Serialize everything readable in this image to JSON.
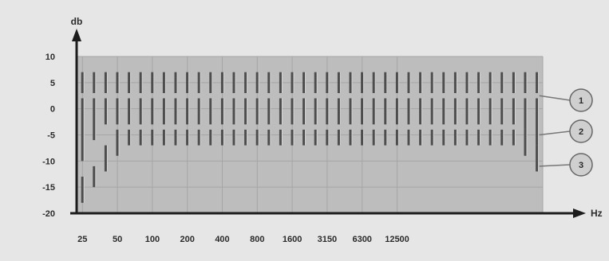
{
  "chart_data": {
    "type": "range-bar",
    "title": "",
    "xlabel": "Hz",
    "ylabel": "db",
    "ylim": [
      -20,
      10
    ],
    "yticks": [
      10,
      5,
      0,
      -5,
      -10,
      -15,
      -20
    ],
    "xtick_labels": [
      "25",
      "50",
      "100",
      "200",
      "400",
      "800",
      "1600",
      "3150",
      "6300",
      "12500"
    ],
    "band_count": 40,
    "x_tick_positions": [
      0.5,
      3.5,
      6.5,
      9.5,
      12.5,
      15.5,
      18.5,
      21.5,
      24.5,
      27.5
    ],
    "grid": true,
    "callouts": [
      "1",
      "2",
      "3"
    ],
    "series": [
      {
        "callout": "1",
        "segments": [
          [
            3,
            7
          ],
          [
            3,
            7
          ],
          [
            3,
            7
          ],
          [
            3,
            7
          ],
          [
            3,
            7
          ],
          [
            3,
            7
          ],
          [
            3,
            7
          ],
          [
            3,
            7
          ],
          [
            3,
            7
          ],
          [
            3,
            7
          ],
          [
            3,
            7
          ],
          [
            3,
            7
          ],
          [
            3,
            7
          ],
          [
            3,
            7
          ],
          [
            3,
            7
          ],
          [
            3,
            7
          ],
          [
            3,
            7
          ],
          [
            3,
            7
          ],
          [
            3,
            7
          ],
          [
            3,
            7
          ],
          [
            3,
            7
          ],
          [
            3,
            7
          ],
          [
            3,
            7
          ],
          [
            3,
            7
          ],
          [
            3,
            7
          ],
          [
            3,
            7
          ],
          [
            3,
            7
          ],
          [
            3,
            7
          ],
          [
            3,
            7
          ],
          [
            3,
            7
          ],
          [
            3,
            7
          ],
          [
            3,
            7
          ],
          [
            3,
            7
          ],
          [
            3,
            7
          ],
          [
            3,
            7
          ],
          [
            3,
            7
          ],
          [
            3,
            7
          ],
          [
            3,
            7
          ],
          [
            3,
            7
          ],
          [
            3,
            7
          ]
        ]
      },
      {
        "callout": "2",
        "segments": [
          [
            -10,
            2
          ],
          [
            -6,
            2
          ],
          [
            -3,
            2
          ],
          [
            -3,
            2
          ],
          [
            -3,
            2
          ],
          [
            -3,
            2
          ],
          [
            -3,
            2
          ],
          [
            -3,
            2
          ],
          [
            -3,
            2
          ],
          [
            -3,
            2
          ],
          [
            -3,
            2
          ],
          [
            -3,
            2
          ],
          [
            -3,
            2
          ],
          [
            -3,
            2
          ],
          [
            -3,
            2
          ],
          [
            -3,
            2
          ],
          [
            -3,
            2
          ],
          [
            -3,
            2
          ],
          [
            -3,
            2
          ],
          [
            -3,
            2
          ],
          [
            -3,
            2
          ],
          [
            -3,
            2
          ],
          [
            -3,
            2
          ],
          [
            -3,
            2
          ],
          [
            -3,
            2
          ],
          [
            -3,
            2
          ],
          [
            -3,
            2
          ],
          [
            -3,
            2
          ],
          [
            -3,
            2
          ],
          [
            -3,
            2
          ],
          [
            -3,
            2
          ],
          [
            -3,
            2
          ],
          [
            -3,
            2
          ],
          [
            -3,
            2
          ],
          [
            -3,
            2
          ],
          [
            -3,
            2
          ],
          [
            -3,
            2
          ],
          [
            -3,
            2
          ],
          [
            -4,
            2
          ],
          [
            -7,
            2
          ]
        ]
      },
      {
        "callout": "3",
        "segments": [
          [
            -18,
            -13
          ],
          [
            -15,
            -11
          ],
          [
            -12,
            -7
          ],
          [
            -9,
            -4
          ],
          [
            -7,
            -4
          ],
          [
            -7,
            -4
          ],
          [
            -7,
            -4
          ],
          [
            -7,
            -4
          ],
          [
            -7,
            -4
          ],
          [
            -7,
            -4
          ],
          [
            -7,
            -4
          ],
          [
            -7,
            -4
          ],
          [
            -7,
            -4
          ],
          [
            -7,
            -4
          ],
          [
            -7,
            -4
          ],
          [
            -7,
            -4
          ],
          [
            -7,
            -4
          ],
          [
            -7,
            -4
          ],
          [
            -7,
            -4
          ],
          [
            -7,
            -4
          ],
          [
            -7,
            -4
          ],
          [
            -7,
            -4
          ],
          [
            -7,
            -4
          ],
          [
            -7,
            -4
          ],
          [
            -7,
            -4
          ],
          [
            -7,
            -4
          ],
          [
            -7,
            -4
          ],
          [
            -7,
            -4
          ],
          [
            -7,
            -4
          ],
          [
            -7,
            -4
          ],
          [
            -7,
            -4
          ],
          [
            -7,
            -4
          ],
          [
            -7,
            -4
          ],
          [
            -7,
            -4
          ],
          [
            -7,
            -4
          ],
          [
            -7,
            -4
          ],
          [
            -7,
            -4
          ],
          [
            -7,
            -4
          ],
          [
            -9,
            -4
          ],
          [
            -12,
            -7
          ]
        ]
      }
    ],
    "colors": {
      "page_bg": "#e6e6e6",
      "plot_bg": "#bdbdbd",
      "grid": "#a6a6a6",
      "bar": "#4d4d4d",
      "bar_highlight": "#d6d6d6",
      "axis": "#1c1c1c",
      "callout_fill": "#cfcfcf",
      "callout_stroke": "#666666",
      "leader": "#777777"
    }
  }
}
